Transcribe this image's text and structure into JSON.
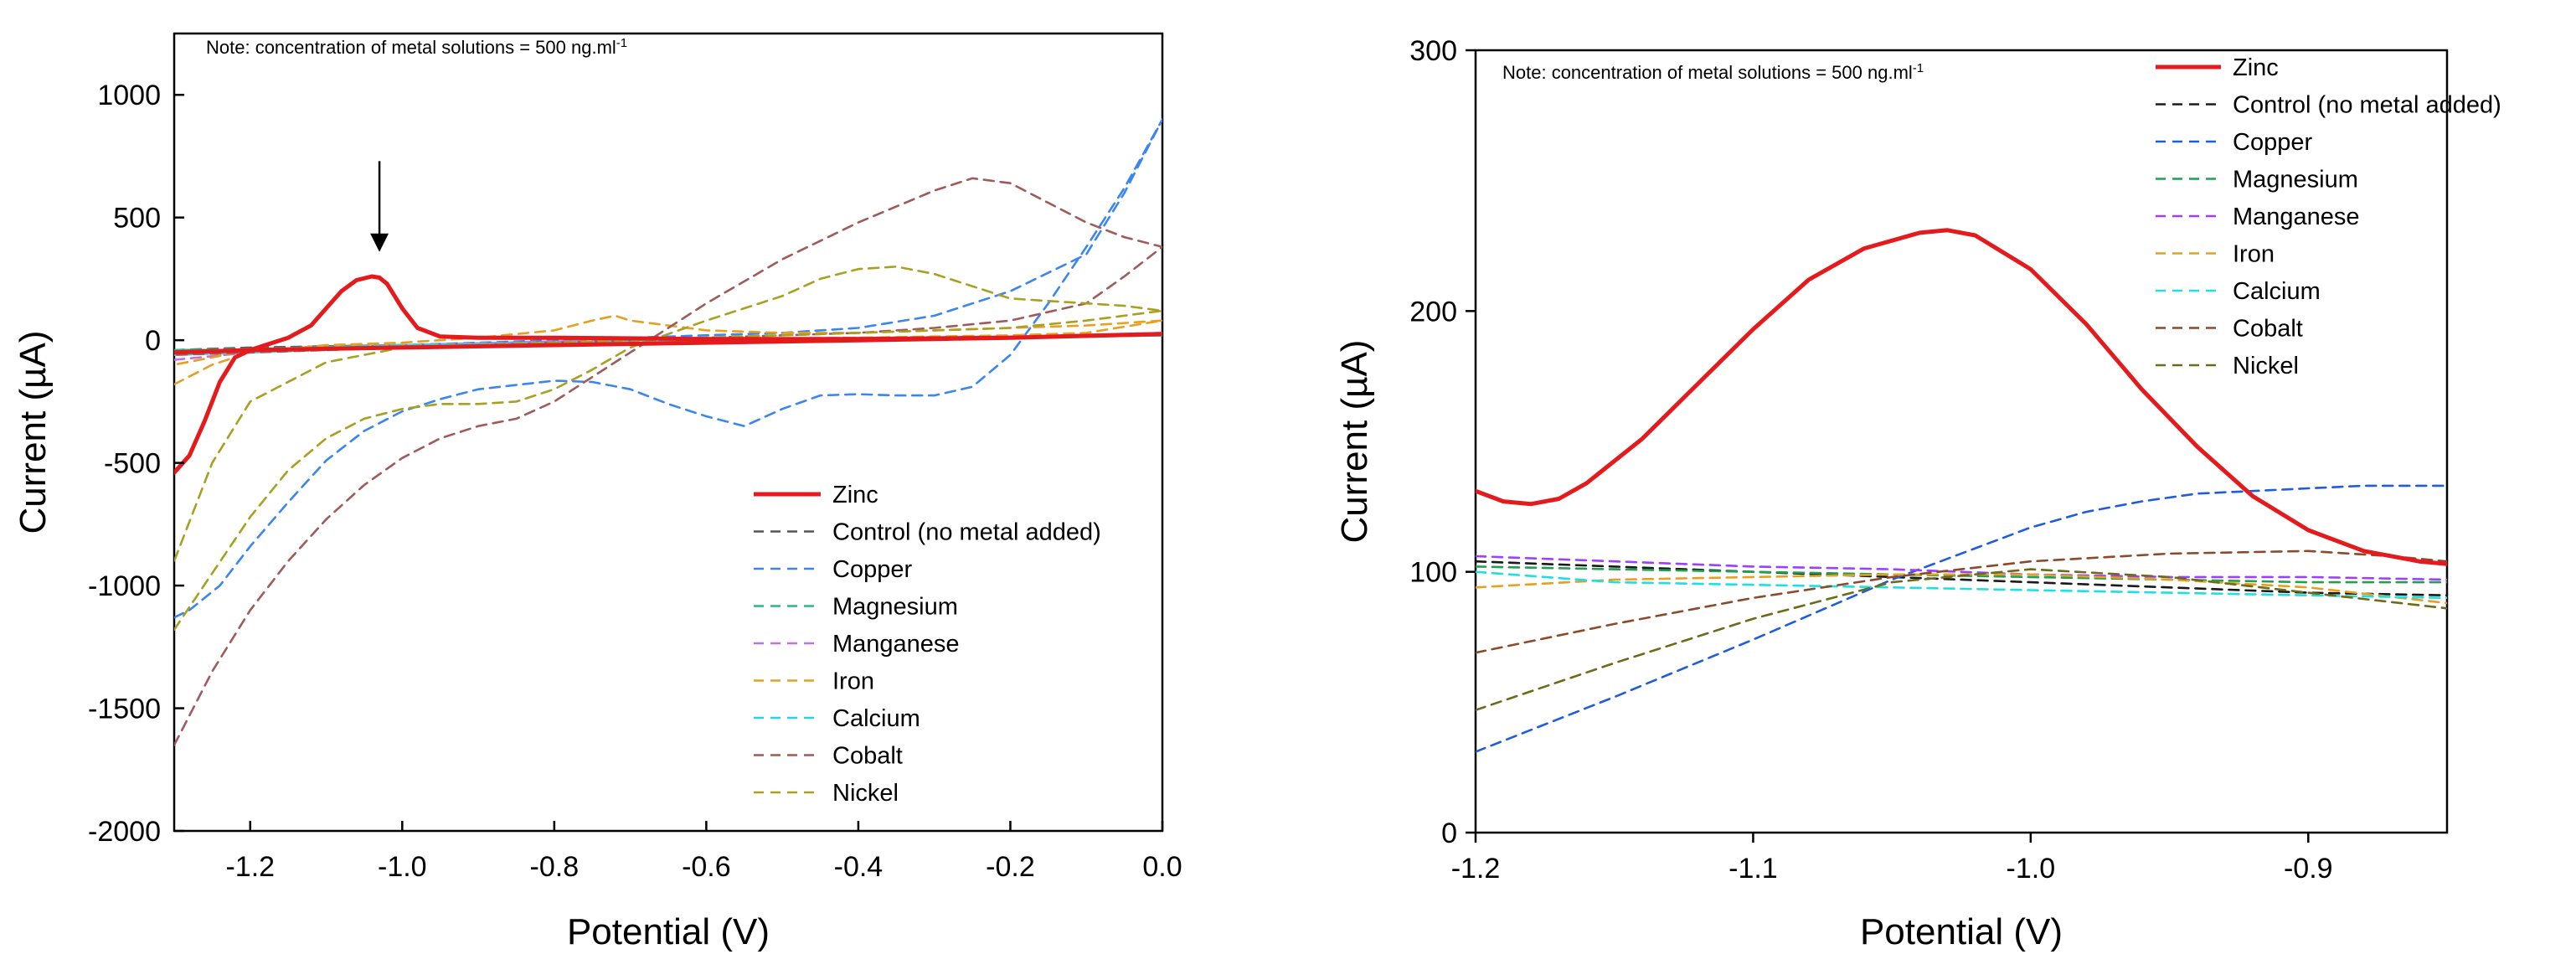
{
  "colors": {
    "Zinc": "#e41a1c",
    "Control (no metal added)": "#1a1a1a",
    "Copper": "#1f5ce0",
    "Magnesium": "#20a050",
    "Manganese": "#9b40ff",
    "Iron": "#e6a020",
    "Calcium": "#1ee0e0",
    "Cobalt": "#8b4a2a",
    "Nickel": "#6b6b1a",
    "left_Copper": "#3a86f0",
    "left_Magnesium": "#2ab58a",
    "left_Manganese": "#c070e0",
    "left_Iron": "#e6a020",
    "left_Calcium": "#30d0e0",
    "left_Cobalt": "#a05a5a",
    "left_Nickel": "#a8a020",
    "left_Control": "#555555"
  },
  "chart_data": [
    {
      "type": "line",
      "title": "",
      "note": "Note: concentration of metal solutions = 500 ng.ml",
      "note_superscript": "-1",
      "xlabel": "Potential (V)",
      "ylabel": "Current (µA)",
      "xlim": [
        -1.3,
        0.0
      ],
      "ylim": [
        -2000,
        1250
      ],
      "xticks": [
        -1.2,
        -1.0,
        -0.8,
        -0.6,
        -0.4,
        -0.2,
        0.0
      ],
      "xtick_labels": [
        "-1.2",
        "-1.0",
        "-0.8",
        "-0.6",
        "-0.4",
        "-0.2",
        "0.0"
      ],
      "yticks": [
        -2000,
        -1500,
        -1000,
        -500,
        0,
        500,
        1000
      ],
      "ytick_labels": [
        "-2000",
        "-1500",
        "-1000",
        "-500",
        "0",
        "500",
        "1000"
      ],
      "annotation": {
        "type": "arrow",
        "x": -1.03,
        "y_from": 730,
        "y_to": 360
      },
      "legend_position": "bottom-right",
      "series": [
        {
          "name": "Zinc",
          "style": "solid",
          "x": [
            -1.3,
            -1.28,
            -1.26,
            -1.24,
            -1.22,
            -1.2,
            -1.18,
            -1.15,
            -1.12,
            -1.1,
            -1.08,
            -1.06,
            -1.04,
            -1.03,
            -1.02,
            -1.0,
            -0.98,
            -0.95,
            -0.9,
            -0.8,
            -0.6,
            -0.4,
            -0.2,
            0.0,
            -0.2,
            -0.4,
            -0.6,
            -0.8,
            -1.0,
            -1.2,
            -1.3
          ],
          "y": [
            -540,
            -470,
            -330,
            -170,
            -70,
            -40,
            -20,
            10,
            60,
            130,
            200,
            245,
            260,
            255,
            230,
            130,
            50,
            15,
            10,
            10,
            5,
            5,
            10,
            25,
            10,
            0,
            -10,
            -20,
            -30,
            -40,
            -50
          ]
        },
        {
          "name": "Control (no metal added)",
          "style": "dashed",
          "x": [
            -1.3,
            -1.2,
            -1.0,
            -0.8,
            -0.6,
            -0.4,
            -0.2,
            0.0,
            -0.2,
            -0.4,
            -0.6,
            -0.8,
            -1.0,
            -1.2,
            -1.3
          ],
          "y": [
            -40,
            -30,
            -20,
            -10,
            0,
            5,
            10,
            20,
            10,
            0,
            -10,
            -20,
            -30,
            -40,
            -40
          ]
        },
        {
          "name": "Copper",
          "style": "dashed",
          "x": [
            -1.3,
            -1.28,
            -1.24,
            -1.2,
            -1.15,
            -1.1,
            -1.05,
            -1.0,
            -0.95,
            -0.9,
            -0.8,
            -0.75,
            -0.7,
            -0.65,
            -0.6,
            -0.55,
            -0.5,
            -0.45,
            -0.4,
            -0.35,
            -0.3,
            -0.25,
            -0.2,
            -0.15,
            -0.1,
            -0.05,
            0.0,
            -0.05,
            -0.1,
            -0.2,
            -0.3,
            -0.4,
            -0.5,
            -0.6,
            -0.7,
            -0.8,
            -0.9,
            -1.0,
            -1.1,
            -1.2,
            -1.3
          ],
          "y": [
            -1130,
            -1100,
            -1000,
            -840,
            -660,
            -490,
            -370,
            -290,
            -240,
            -200,
            -165,
            -170,
            -200,
            -260,
            -310,
            -350,
            -280,
            -225,
            -220,
            -225,
            -225,
            -190,
            -60,
            150,
            380,
            620,
            900,
            600,
            350,
            200,
            100,
            50,
            30,
            20,
            10,
            0,
            -10,
            -20,
            -30,
            -40,
            -50
          ]
        },
        {
          "name": "Magnesium",
          "style": "dashed",
          "x": [
            -1.3,
            -1.2,
            -1.0,
            -0.8,
            -0.6,
            -0.4,
            -0.2,
            0.0,
            -0.2,
            -0.4,
            -0.6,
            -0.8,
            -1.0,
            -1.2,
            -1.3
          ],
          "y": [
            -40,
            -35,
            -20,
            -10,
            0,
            5,
            10,
            20,
            10,
            0,
            -10,
            -20,
            -30,
            -40,
            -40
          ]
        },
        {
          "name": "Manganese",
          "style": "dashed",
          "x": [
            -1.3,
            -1.2,
            -1.0,
            -0.8,
            -0.6,
            -0.4,
            -0.2,
            0.0,
            -0.2,
            -0.4,
            -0.6,
            -0.8,
            -1.0,
            -1.2,
            -1.3
          ],
          "y": [
            -80,
            -50,
            -20,
            -5,
            5,
            10,
            15,
            30,
            15,
            5,
            -5,
            -15,
            -25,
            -40,
            -60
          ]
        },
        {
          "name": "Iron",
          "style": "dashed",
          "x": [
            -1.3,
            -1.25,
            -1.2,
            -1.1,
            -1.0,
            -0.9,
            -0.8,
            -0.75,
            -0.72,
            -0.7,
            -0.6,
            -0.5,
            -0.4,
            -0.3,
            -0.2,
            -0.1,
            0.0,
            -0.1,
            -0.2,
            -0.4,
            -0.6,
            -0.8,
            -1.0,
            -1.2,
            -1.3
          ],
          "y": [
            -180,
            -100,
            -50,
            -20,
            -10,
            10,
            40,
            80,
            100,
            80,
            40,
            30,
            30,
            40,
            50,
            60,
            80,
            30,
            20,
            10,
            0,
            -10,
            -20,
            -40,
            -100
          ]
        },
        {
          "name": "Calcium",
          "style": "dashed",
          "x": [
            -1.3,
            -1.2,
            -1.0,
            -0.8,
            -0.6,
            -0.4,
            -0.2,
            0.0,
            -0.2,
            -0.4,
            -0.6,
            -0.8,
            -1.0,
            -1.2,
            -1.3
          ],
          "y": [
            -60,
            -40,
            -20,
            -10,
            0,
            0,
            10,
            20,
            10,
            0,
            -10,
            -20,
            -30,
            -50,
            -60
          ]
        },
        {
          "name": "Cobalt",
          "style": "dashed",
          "x": [
            -1.3,
            -1.25,
            -1.2,
            -1.15,
            -1.1,
            -1.05,
            -1.0,
            -0.95,
            -0.9,
            -0.85,
            -0.8,
            -0.7,
            -0.6,
            -0.5,
            -0.4,
            -0.3,
            -0.25,
            -0.2,
            -0.15,
            -0.1,
            -0.05,
            0.0,
            -0.05,
            -0.1,
            -0.2,
            -0.3,
            -0.4,
            -0.5,
            -0.6,
            -0.7,
            -0.8,
            -0.9,
            -1.0,
            -1.1,
            -1.2,
            -1.3
          ],
          "y": [
            -1650,
            -1350,
            -1100,
            -900,
            -730,
            -590,
            -480,
            -400,
            -350,
            -320,
            -250,
            -50,
            150,
            330,
            480,
            610,
            660,
            640,
            560,
            480,
            420,
            380,
            260,
            150,
            80,
            50,
            30,
            20,
            10,
            0,
            -10,
            -20,
            -30,
            -40,
            -50,
            -60
          ]
        },
        {
          "name": "Nickel",
          "style": "dashed",
          "x": [
            -1.3,
            -1.25,
            -1.2,
            -1.15,
            -1.1,
            -1.05,
            -1.0,
            -0.95,
            -0.9,
            -0.85,
            -0.8,
            -0.75,
            -0.7,
            -0.6,
            -0.5,
            -0.45,
            -0.4,
            -0.35,
            -0.3,
            -0.25,
            -0.2,
            -0.1,
            -0.05,
            0.0,
            -0.1,
            -0.2,
            -0.4,
            -0.6,
            -0.8,
            -1.0,
            -1.1,
            -1.2,
            -1.25,
            -1.3
          ],
          "y": [
            -1180,
            -950,
            -720,
            -530,
            -400,
            -320,
            -280,
            -260,
            -260,
            -250,
            -200,
            -120,
            -30,
            80,
            180,
            250,
            290,
            300,
            270,
            220,
            170,
            150,
            140,
            120,
            80,
            50,
            30,
            10,
            -10,
            -30,
            -90,
            -250,
            -500,
            -900
          ]
        }
      ]
    },
    {
      "type": "line",
      "title": "",
      "note": "Note: concentration of metal solutions = 500 ng.ml",
      "note_superscript": "-1",
      "xlabel": "Potential (V)",
      "ylabel": "Current (µA)",
      "xlim": [
        -1.2,
        -0.85
      ],
      "ylim": [
        0,
        300
      ],
      "xticks": [
        -1.2,
        -1.1,
        -1.0,
        -0.9
      ],
      "xtick_labels": [
        "-1.2",
        "-1.1",
        "-1.0",
        "-0.9"
      ],
      "yticks": [
        0,
        100,
        200,
        300
      ],
      "ytick_labels": [
        "0",
        "100",
        "200",
        "300"
      ],
      "legend_position": "top-right",
      "series": [
        {
          "name": "Zinc",
          "style": "solid",
          "x": [
            -1.2,
            -1.19,
            -1.18,
            -1.17,
            -1.16,
            -1.14,
            -1.12,
            -1.1,
            -1.08,
            -1.06,
            -1.04,
            -1.03,
            -1.02,
            -1.0,
            -0.98,
            -0.96,
            -0.94,
            -0.92,
            -0.9,
            -0.88,
            -0.86,
            -0.85
          ],
          "y": [
            131,
            127,
            126,
            128,
            134,
            151,
            172,
            193,
            212,
            224,
            230,
            231,
            229,
            216,
            195,
            170,
            148,
            129,
            116,
            108,
            104,
            103
          ]
        },
        {
          "name": "Control (no metal added)",
          "style": "dashed",
          "x": [
            -1.2,
            -1.15,
            -1.1,
            -1.05,
            -1.0,
            -0.95,
            -0.9,
            -0.85
          ],
          "y": [
            104,
            102,
            100,
            98,
            96,
            94,
            92,
            91
          ]
        },
        {
          "name": "Copper",
          "style": "dashed",
          "x": [
            -1.2,
            -1.15,
            -1.1,
            -1.05,
            -1.0,
            -0.98,
            -0.96,
            -0.94,
            -0.92,
            -0.9,
            -0.88,
            -0.85
          ],
          "y": [
            31,
            52,
            74,
            97,
            117,
            123,
            127,
            130,
            131,
            132,
            133,
            133
          ]
        },
        {
          "name": "Magnesium",
          "style": "dashed",
          "x": [
            -1.2,
            -1.15,
            -1.1,
            -1.05,
            -1.0,
            -0.95,
            -0.9,
            -0.85
          ],
          "y": [
            102,
            101,
            100,
            99,
            98,
            97,
            96,
            96
          ]
        },
        {
          "name": "Manganese",
          "style": "dashed",
          "x": [
            -1.2,
            -1.15,
            -1.1,
            -1.05,
            -1.0,
            -0.95,
            -0.9,
            -0.85
          ],
          "y": [
            106,
            104,
            102,
            101,
            99,
            98,
            98,
            97
          ]
        },
        {
          "name": "Iron",
          "style": "dashed",
          "x": [
            -1.2,
            -1.15,
            -1.1,
            -1.05,
            -1.0,
            -0.95,
            -0.9,
            -0.85
          ],
          "y": [
            94,
            97,
            98,
            99,
            99,
            97,
            94,
            88
          ]
        },
        {
          "name": "Calcium",
          "style": "dashed",
          "x": [
            -1.2,
            -1.15,
            -1.1,
            -1.05,
            -1.0,
            -0.95,
            -0.9,
            -0.85
          ],
          "y": [
            100,
            96,
            95,
            94,
            93,
            92,
            91,
            90
          ]
        },
        {
          "name": "Cobalt",
          "style": "dashed",
          "x": [
            -1.2,
            -1.15,
            -1.1,
            -1.05,
            -1.0,
            -0.95,
            -0.9,
            -0.87,
            -0.85
          ],
          "y": [
            69,
            80,
            90,
            98,
            104,
            107,
            108,
            106,
            104
          ]
        },
        {
          "name": "Nickel",
          "style": "dashed",
          "x": [
            -1.2,
            -1.15,
            -1.1,
            -1.05,
            -1.0,
            -0.95,
            -0.9,
            -0.85
          ],
          "y": [
            47,
            65,
            82,
            96,
            101,
            98,
            92,
            86
          ]
        }
      ]
    }
  ]
}
